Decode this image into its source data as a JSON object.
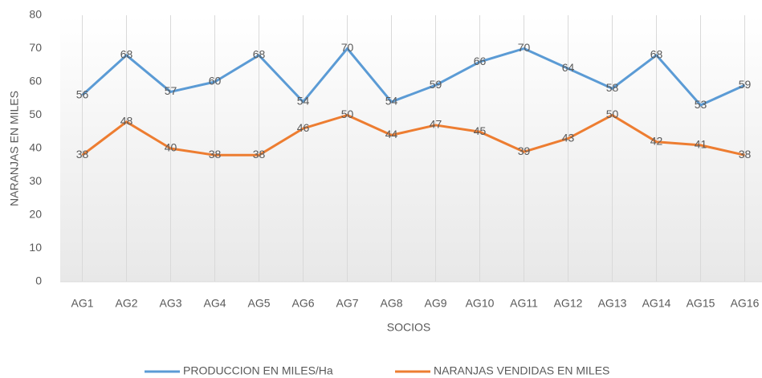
{
  "chart_data": {
    "type": "line",
    "xlabel": "SOCIOS",
    "ylabel": "NARANJAS EN MILES",
    "categories": [
      "AG1",
      "AG2",
      "AG3",
      "AG4",
      "AG5",
      "AG6",
      "AG7",
      "AG8",
      "AG9",
      "AG10",
      "AG11",
      "AG12",
      "AG13",
      "AG14",
      "AG15",
      "AG16"
    ],
    "series": [
      {
        "name": "PRODUCCION EN MILES/Ha",
        "color": "#5b9bd5",
        "values": [
          56,
          68,
          57,
          60,
          68,
          54,
          70,
          54,
          59,
          66,
          70,
          64,
          58,
          68,
          53,
          59
        ]
      },
      {
        "name": "NARANJAS VENDIDAS EN MILES",
        "color": "#ed7d31",
        "values": [
          38,
          48,
          40,
          38,
          38,
          46,
          50,
          44,
          47,
          45,
          39,
          43,
          50,
          42,
          41,
          38
        ]
      }
    ],
    "ylim": [
      0,
      80
    ],
    "yticks": [
      0,
      10,
      20,
      30,
      40,
      50,
      60,
      70,
      80
    ],
    "grid": "x",
    "legend": "bottom"
  }
}
